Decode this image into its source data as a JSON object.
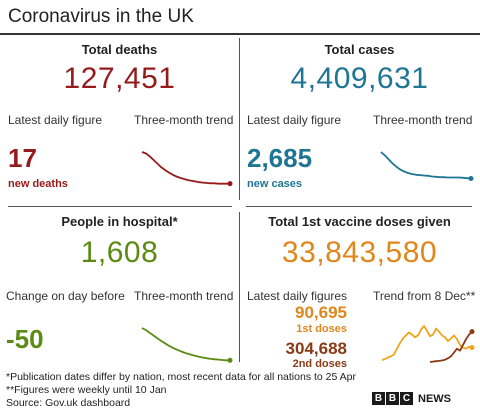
{
  "title": "Coronavirus in the UK",
  "deaths": {
    "heading": "Total deaths",
    "total": "127,451",
    "daily_label": "Latest daily figure",
    "trend_label": "Three-month trend",
    "daily": "17",
    "daily_caption": "new deaths",
    "color": "#951b1b"
  },
  "cases": {
    "heading": "Total cases",
    "total": "4,409,631",
    "daily_label": "Latest daily figure",
    "trend_label": "Three-month trend",
    "daily": "2,685",
    "daily_caption": "new cases",
    "color": "#1e7594"
  },
  "hospital": {
    "heading": "People in hospital*",
    "total": "1,608",
    "daily_label": "Change on day before",
    "trend_label": "Three-month trend",
    "daily": "-50",
    "color": "#5c8a14"
  },
  "vaccine": {
    "heading": "Total 1st vaccine doses given",
    "total": "33,843,580",
    "daily_label": "Latest daily figures",
    "trend_label": "Trend from 8 Dec**",
    "first_doses": "90,695",
    "first_caption": "1st doses",
    "second_doses": "304,688",
    "second_caption": "2nd doses",
    "color": "#e0871c",
    "second_color": "#8a3b16"
  },
  "footnotes": {
    "line1": "*Publication dates differ by nation, most recent data for all nations to 25 Apr",
    "line2": "**Figures were weekly until 10 Jan",
    "line3": "Source: Gov.uk dashboard"
  },
  "brand": {
    "letters": [
      "B",
      "B",
      "C"
    ],
    "news": "NEWS"
  },
  "chart_data": [
    {
      "type": "line",
      "name": "deaths-trend",
      "values": [
        100,
        96,
        88,
        78,
        68,
        58,
        50,
        43,
        37,
        32,
        28,
        25,
        22,
        20,
        18,
        16,
        15,
        14,
        13,
        13,
        12,
        12,
        12,
        12
      ],
      "color": "#951b1b",
      "end_marker": true
    },
    {
      "type": "line",
      "name": "cases-trend",
      "values": [
        100,
        90,
        78,
        66,
        56,
        48,
        42,
        38,
        35,
        33,
        32,
        31,
        30,
        28,
        27,
        26,
        26,
        25,
        25,
        25,
        25,
        24,
        23,
        22
      ],
      "color": "#1e7594",
      "end_marker": true
    },
    {
      "type": "line",
      "name": "hospital-trend",
      "values": [
        100,
        94,
        86,
        78,
        70,
        62,
        55,
        48,
        42,
        37,
        32,
        28,
        24,
        21,
        18,
        15,
        13,
        11,
        9,
        8,
        7,
        6,
        5,
        5
      ],
      "color": "#5c8a14",
      "end_marker": true
    },
    {
      "type": "line",
      "name": "vaccine-trend",
      "series": [
        {
          "values": [
            5,
            8,
            12,
            15,
            20,
            35,
            50,
            62,
            70,
            78,
            72,
            65,
            70,
            85,
            95,
            82,
            68,
            72,
            88,
            80,
            70,
            65,
            55,
            62,
            70,
            60,
            45,
            38,
            35,
            40,
            38
          ],
          "color": "#f2a31f"
        },
        {
          "values": [
            null,
            null,
            null,
            null,
            null,
            null,
            null,
            null,
            null,
            null,
            null,
            null,
            null,
            null,
            null,
            null,
            0,
            1,
            2,
            3,
            4,
            6,
            10,
            15,
            25,
            35,
            30,
            45,
            60,
            72,
            80
          ],
          "color": "#8a3b16"
        }
      ],
      "ylim": [
        0,
        100
      ]
    }
  ]
}
